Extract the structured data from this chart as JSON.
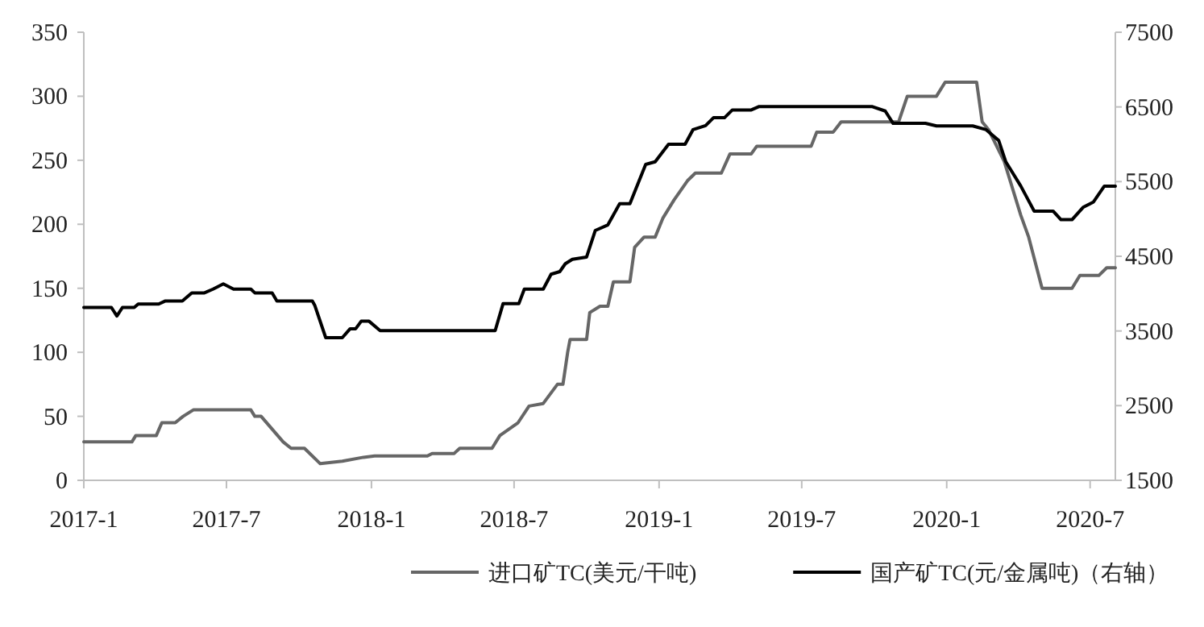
{
  "chart_data": {
    "type": "line",
    "xlim": [
      "2017-01-01",
      "2020-08-02"
    ],
    "xticks": [
      {
        "value": "2017-01-01",
        "label": "2017-1"
      },
      {
        "value": "2017-07-01",
        "label": "2017-7"
      },
      {
        "value": "2018-01-01",
        "label": "2018-1"
      },
      {
        "value": "2018-07-01",
        "label": "2018-7"
      },
      {
        "value": "2019-01-01",
        "label": "2019-1"
      },
      {
        "value": "2019-07-01",
        "label": "2019-7"
      },
      {
        "value": "2020-01-01",
        "label": "2020-1"
      },
      {
        "value": "2020-07-01",
        "label": "2020-7"
      }
    ],
    "ylim": [
      0,
      350
    ],
    "yticks": [
      0,
      50,
      100,
      150,
      200,
      250,
      300,
      350
    ],
    "y2lim": [
      1500,
      7500
    ],
    "y2ticks": [
      1500,
      2500,
      3500,
      4500,
      5500,
      6500,
      7500
    ],
    "grid": false,
    "legend": "bottom",
    "series": [
      {
        "name": "进口矿TC(美元/干吨)",
        "color": "#666666",
        "axis": "y",
        "x": [
          "2017-01-01",
          "2017-03-03",
          "2017-03-08",
          "2017-04-03",
          "2017-04-10",
          "2017-04-27",
          "2017-05-07",
          "2017-05-20",
          "2017-08-01",
          "2017-08-06",
          "2017-08-14",
          "2017-09-11",
          "2017-09-21",
          "2017-10-08",
          "2017-10-28",
          "2017-11-25",
          "2017-12-22",
          "2018-01-05",
          "2018-03-13",
          "2018-03-19",
          "2018-04-16",
          "2018-04-23",
          "2018-06-03",
          "2018-06-13",
          "2018-07-06",
          "2018-07-20",
          "2018-08-07",
          "2018-08-25",
          "2018-09-01",
          "2018-09-07",
          "2018-09-10",
          "2018-10-01",
          "2018-10-05",
          "2018-10-18",
          "2018-10-28",
          "2018-11-04",
          "2018-11-25",
          "2018-12-01",
          "2018-12-13",
          "2018-12-27",
          "2019-01-06",
          "2019-01-20",
          "2019-02-06",
          "2019-02-16",
          "2019-03-21",
          "2019-04-01",
          "2019-04-28",
          "2019-05-05",
          "2019-07-13",
          "2019-07-20",
          "2019-08-10",
          "2019-08-20",
          "2019-11-01",
          "2019-11-12",
          "2019-12-19",
          "2019-12-30",
          "2020-02-08",
          "2020-02-15",
          "2020-02-23",
          "2020-03-14",
          "2020-04-04",
          "2020-04-14",
          "2020-05-01",
          "2020-06-08",
          "2020-06-18",
          "2020-07-12",
          "2020-07-22",
          "2020-08-02"
        ],
        "values": [
          30,
          30,
          35,
          35,
          45,
          45,
          50,
          55,
          55,
          50,
          50,
          30,
          25,
          25,
          13,
          15,
          18,
          19,
          19,
          21,
          21,
          25,
          25,
          35,
          45,
          58,
          60,
          75,
          75,
          100,
          110,
          110,
          131,
          136,
          136,
          155,
          155,
          182,
          190,
          190,
          205,
          219,
          234,
          240,
          240,
          255,
          255,
          261,
          261,
          272,
          272,
          280,
          280,
          300,
          300,
          311,
          311,
          280,
          274,
          249,
          207,
          190,
          150,
          150,
          160,
          160,
          166,
          166
        ]
      },
      {
        "name": "国产矿TC(元/金属吨)（右轴）",
        "color": "#000000",
        "axis": "y2",
        "x": [
          "2017-01-01",
          "2017-02-05",
          "2017-02-12",
          "2017-02-19",
          "2017-03-06",
          "2017-03-11",
          "2017-04-06",
          "2017-04-14",
          "2017-05-06",
          "2017-05-18",
          "2017-06-03",
          "2017-06-14",
          "2017-06-27",
          "2017-07-10",
          "2017-08-01",
          "2017-08-06",
          "2017-08-28",
          "2017-09-03",
          "2017-10-18",
          "2017-10-21",
          "2017-11-04",
          "2017-11-25",
          "2017-12-05",
          "2017-12-12",
          "2017-12-19",
          "2017-12-29",
          "2018-01-12",
          "2018-06-07",
          "2018-06-17",
          "2018-07-07",
          "2018-07-14",
          "2018-08-07",
          "2018-08-17",
          "2018-08-28",
          "2018-09-04",
          "2018-09-13",
          "2018-10-01",
          "2018-10-12",
          "2018-10-28",
          "2018-11-12",
          "2018-11-25",
          "2018-12-15",
          "2018-12-27",
          "2019-01-13",
          "2019-02-03",
          "2019-02-13",
          "2019-03-01",
          "2019-03-11",
          "2019-03-25",
          "2019-04-04",
          "2019-04-28",
          "2019-05-08",
          "2019-09-28",
          "2019-10-15",
          "2019-10-25",
          "2019-12-05",
          "2019-12-19",
          "2020-02-03",
          "2020-02-20",
          "2020-03-07",
          "2020-03-16",
          "2020-04-04",
          "2020-04-21",
          "2020-05-15",
          "2020-05-25",
          "2020-06-08",
          "2020-06-22",
          "2020-07-05",
          "2020-07-19",
          "2020-08-02"
        ],
        "values": [
          3815,
          3815,
          3700,
          3815,
          3815,
          3860,
          3860,
          3900,
          3900,
          4010,
          4010,
          4060,
          4130,
          4060,
          4060,
          4010,
          4010,
          3900,
          3900,
          3845,
          3410,
          3410,
          3530,
          3530,
          3630,
          3630,
          3505,
          3505,
          3865,
          3865,
          4060,
          4060,
          4260,
          4295,
          4400,
          4460,
          4490,
          4845,
          4920,
          5205,
          5205,
          5730,
          5765,
          6000,
          6000,
          6195,
          6250,
          6355,
          6355,
          6460,
          6460,
          6505,
          6505,
          6445,
          6280,
          6280,
          6245,
          6245,
          6195,
          6050,
          5765,
          5440,
          5105,
          5105,
          4990,
          4990,
          5155,
          5225,
          5440,
          5440
        ]
      }
    ]
  }
}
